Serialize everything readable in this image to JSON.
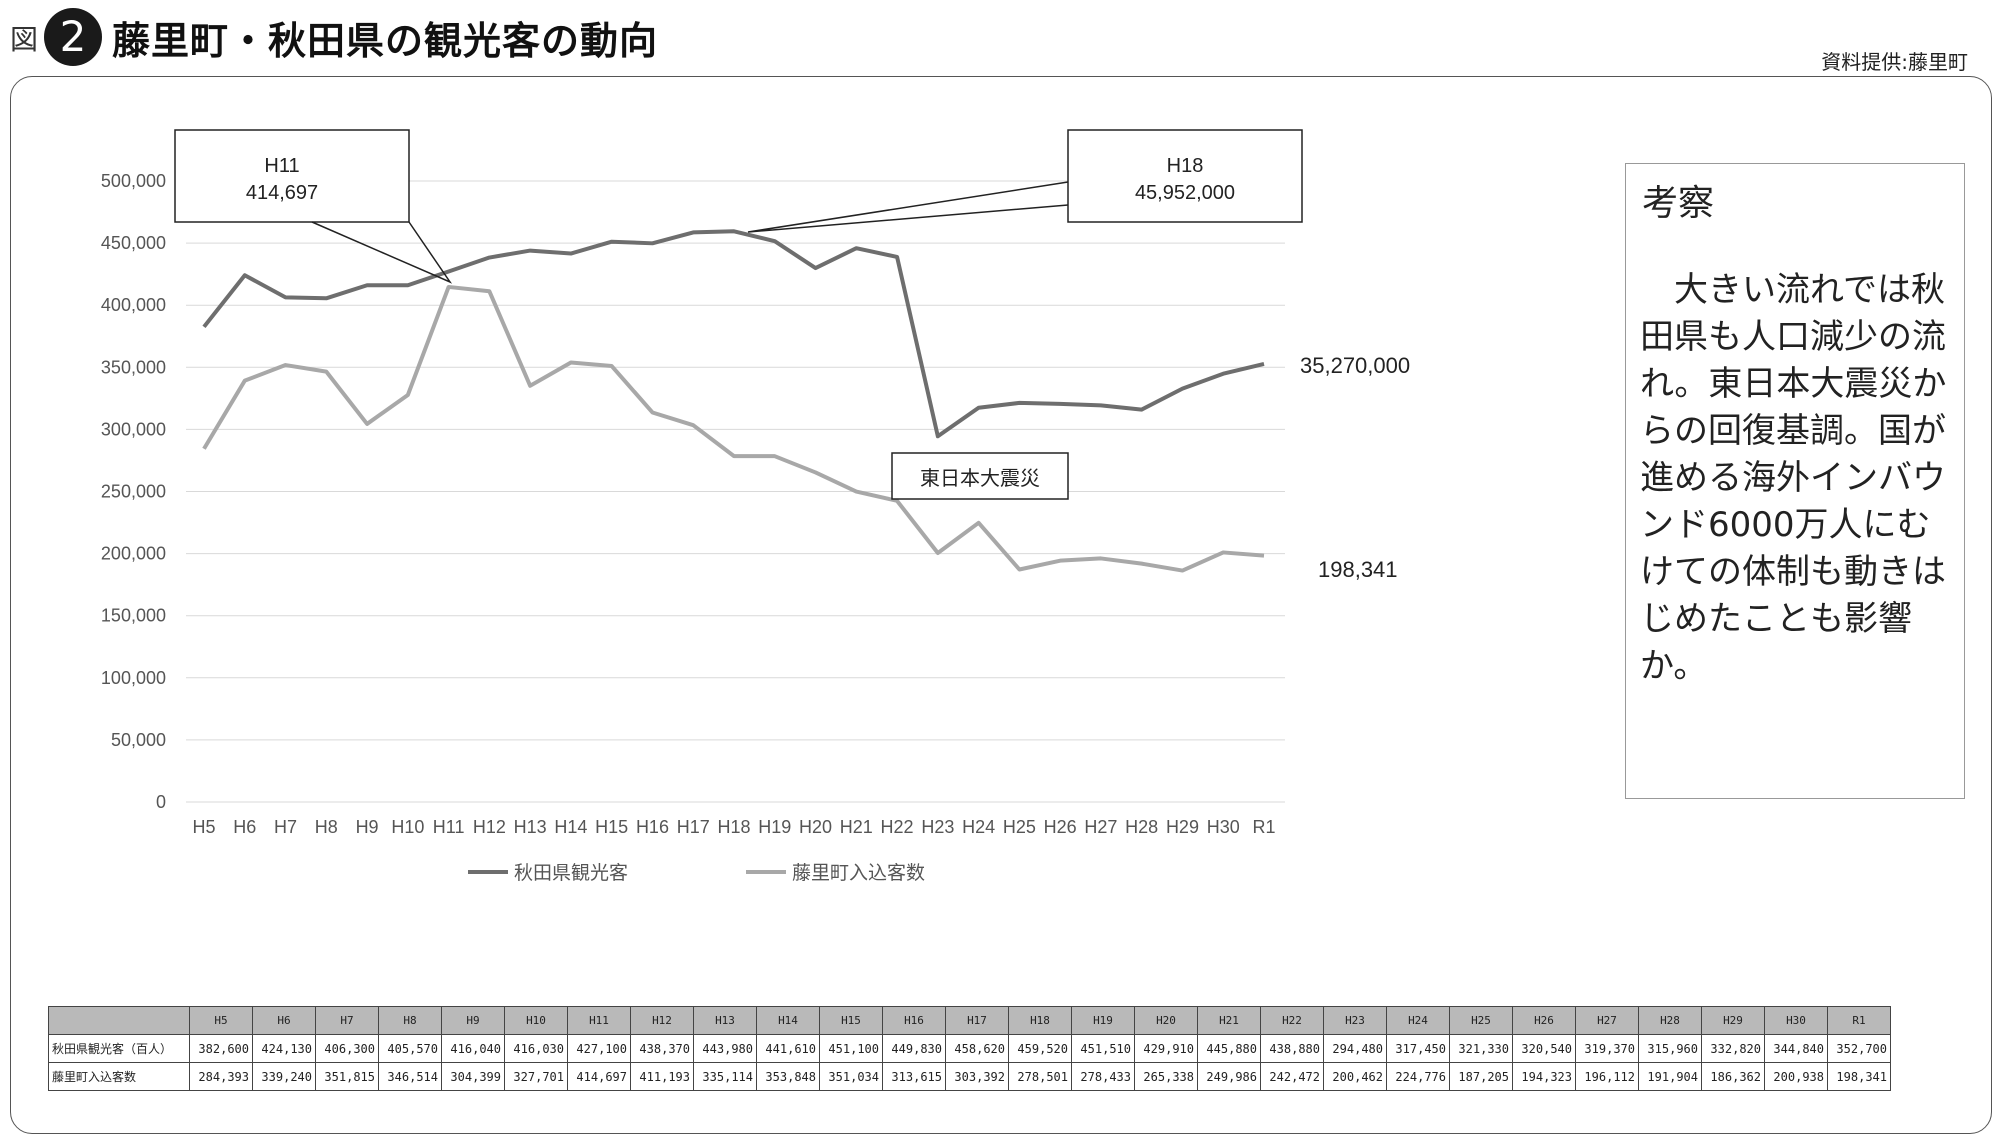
{
  "header": {
    "fig_label": "図",
    "fig_number": "2",
    "title": "藤里町・秋田県の観光客の動向",
    "source": "資料提供:藤里町"
  },
  "chart_data": {
    "type": "line",
    "categories": [
      "H5",
      "H6",
      "H7",
      "H8",
      "H9",
      "H10",
      "H11",
      "H12",
      "H13",
      "H14",
      "H15",
      "H16",
      "H17",
      "H18",
      "H19",
      "H20",
      "H21",
      "H22",
      "H23",
      "H24",
      "H25",
      "H26",
      "H27",
      "H28",
      "H29",
      "H30",
      "R1"
    ],
    "y_ticks": [
      "0",
      "50,000",
      "100,000",
      "150,000",
      "200,000",
      "250,000",
      "300,000",
      "350,000",
      "400,000",
      "450,000",
      "500,000"
    ],
    "ylim": [
      0,
      500000
    ],
    "grid": true,
    "legend_position": "bottom",
    "series": [
      {
        "name": "秋田県観光客",
        "color": "#6e6e6e",
        "values": [
          382600,
          424130,
          406300,
          405570,
          416040,
          416030,
          427100,
          438370,
          443980,
          441610,
          451100,
          449830,
          458620,
          459520,
          451510,
          429910,
          445880,
          438880,
          294480,
          317450,
          321330,
          320540,
          319370,
          315960,
          332820,
          344840,
          352700
        ]
      },
      {
        "name": "藤里町入込客数",
        "color": "#a8a8a8",
        "values": [
          284393,
          339240,
          351815,
          346514,
          304399,
          327701,
          414697,
          411193,
          335114,
          353848,
          351034,
          313615,
          303392,
          278501,
          278433,
          265338,
          249986,
          242472,
          200462,
          224776,
          187205,
          194323,
          196112,
          191904,
          186362,
          200938,
          198341
        ]
      }
    ],
    "annotations": [
      {
        "id": "h11",
        "line1": "H11",
        "line2": "414,697"
      },
      {
        "id": "h18",
        "line1": "H18",
        "line2": "45,952,000"
      },
      {
        "id": "quake",
        "text": "東日本大震災"
      }
    ],
    "end_labels": {
      "series1": "35,270,000",
      "series2": "198,341"
    }
  },
  "insight": {
    "title": "考察",
    "body": "大きい流れでは秋田県も人口減少の流れ。東日本大震災からの回復基調。国が進める海外インバウンド6000万人にむけての体制も動きはじめたことも影響か。"
  },
  "table": {
    "headers": [
      "H5",
      "H6",
      "H7",
      "H8",
      "H9",
      "H10",
      "H11",
      "H12",
      "H13",
      "H14",
      "H15",
      "H16",
      "H17",
      "H18",
      "H19",
      "H20",
      "H21",
      "H22",
      "H23",
      "H24",
      "H25",
      "H26",
      "H27",
      "H28",
      "H29",
      "H30",
      "R1"
    ],
    "rows": [
      {
        "label": "秋田県観光客（百人）",
        "cells": [
          "382,600",
          "424,130",
          "406,300",
          "405,570",
          "416,040",
          "416,030",
          "427,100",
          "438,370",
          "443,980",
          "441,610",
          "451,100",
          "449,830",
          "458,620",
          "459,520",
          "451,510",
          "429,910",
          "445,880",
          "438,880",
          "294,480",
          "317,450",
          "321,330",
          "320,540",
          "319,370",
          "315,960",
          "332,820",
          "344,840",
          "352,700"
        ]
      },
      {
        "label": "藤里町入込客数",
        "cells": [
          "284,393",
          "339,240",
          "351,815",
          "346,514",
          "304,399",
          "327,701",
          "414,697",
          "411,193",
          "335,114",
          "353,848",
          "351,034",
          "313,615",
          "303,392",
          "278,501",
          "278,433",
          "265,338",
          "249,986",
          "242,472",
          "200,462",
          "224,776",
          "187,205",
          "194,323",
          "196,112",
          "191,904",
          "186,362",
          "200,938",
          "198,341"
        ]
      }
    ]
  }
}
